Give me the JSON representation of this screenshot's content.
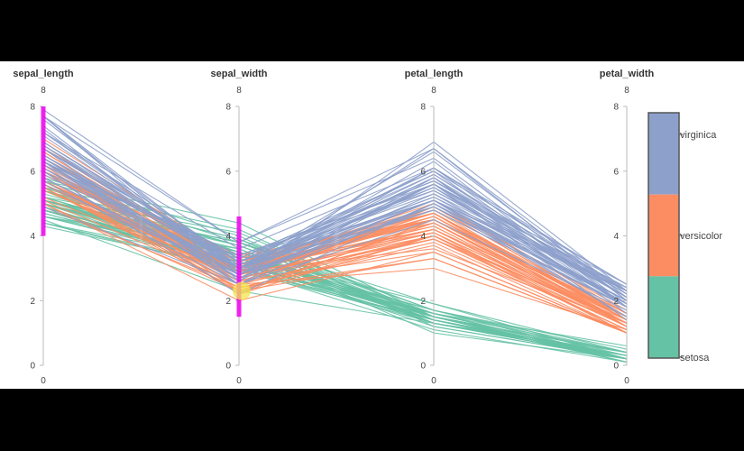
{
  "chart_data": {
    "type": "parallel_coordinates",
    "dimensions": [
      {
        "name": "sepal_length",
        "range": [
          0,
          8
        ],
        "ticks": [
          0,
          2,
          4,
          6,
          8
        ]
      },
      {
        "name": "sepal_width",
        "range": [
          0,
          8
        ],
        "ticks": [
          0,
          2,
          4,
          6,
          8
        ]
      },
      {
        "name": "petal_length",
        "range": [
          0,
          8
        ],
        "ticks": [
          0,
          2,
          4,
          6,
          8
        ]
      },
      {
        "name": "petal_width",
        "range": [
          0,
          8
        ],
        "ticks": [
          0,
          2,
          4,
          6,
          8
        ]
      }
    ],
    "legend": {
      "position": "right",
      "categories": [
        {
          "name": "virginica",
          "color": "#8da0cb"
        },
        {
          "name": "versicolor",
          "color": "#fc8d62"
        },
        {
          "name": "setosa",
          "color": "#66c2a5"
        }
      ]
    },
    "series": [
      {
        "name": "setosa",
        "color": "#66c2a5",
        "rows": [
          [
            5.1,
            3.5,
            1.4,
            0.2
          ],
          [
            4.9,
            3.0,
            1.4,
            0.2
          ],
          [
            4.7,
            3.2,
            1.3,
            0.2
          ],
          [
            4.6,
            3.1,
            1.5,
            0.2
          ],
          [
            5.0,
            3.6,
            1.4,
            0.2
          ],
          [
            5.4,
            3.9,
            1.7,
            0.4
          ],
          [
            4.6,
            3.4,
            1.4,
            0.3
          ],
          [
            5.0,
            3.4,
            1.5,
            0.2
          ],
          [
            4.4,
            2.9,
            1.4,
            0.2
          ],
          [
            4.9,
            3.1,
            1.5,
            0.1
          ],
          [
            5.4,
            3.7,
            1.5,
            0.2
          ],
          [
            4.8,
            3.4,
            1.6,
            0.2
          ],
          [
            4.8,
            3.0,
            1.4,
            0.1
          ],
          [
            4.3,
            3.0,
            1.1,
            0.1
          ],
          [
            5.8,
            4.0,
            1.2,
            0.2
          ],
          [
            5.7,
            4.4,
            1.5,
            0.4
          ],
          [
            5.4,
            3.9,
            1.3,
            0.4
          ],
          [
            5.1,
            3.5,
            1.4,
            0.3
          ],
          [
            5.7,
            3.8,
            1.7,
            0.3
          ],
          [
            5.1,
            3.8,
            1.5,
            0.3
          ],
          [
            5.4,
            3.4,
            1.7,
            0.2
          ],
          [
            5.1,
            3.7,
            1.5,
            0.4
          ],
          [
            4.6,
            3.6,
            1.0,
            0.2
          ],
          [
            5.1,
            3.3,
            1.7,
            0.5
          ],
          [
            4.8,
            3.4,
            1.9,
            0.2
          ],
          [
            5.0,
            3.0,
            1.6,
            0.2
          ],
          [
            5.0,
            3.4,
            1.6,
            0.4
          ],
          [
            5.2,
            3.5,
            1.5,
            0.2
          ],
          [
            5.2,
            3.4,
            1.4,
            0.2
          ],
          [
            4.7,
            3.2,
            1.6,
            0.2
          ],
          [
            4.8,
            3.1,
            1.6,
            0.2
          ],
          [
            5.4,
            3.4,
            1.5,
            0.4
          ],
          [
            5.2,
            4.1,
            1.5,
            0.1
          ],
          [
            5.5,
            4.2,
            1.4,
            0.2
          ],
          [
            4.9,
            3.1,
            1.5,
            0.2
          ],
          [
            5.0,
            3.2,
            1.2,
            0.2
          ],
          [
            5.5,
            3.5,
            1.3,
            0.2
          ],
          [
            4.4,
            3.0,
            1.3,
            0.2
          ],
          [
            5.1,
            3.4,
            1.5,
            0.2
          ],
          [
            5.0,
            3.5,
            1.3,
            0.3
          ],
          [
            4.5,
            2.3,
            1.3,
            0.3
          ],
          [
            4.4,
            3.2,
            1.3,
            0.2
          ],
          [
            5.0,
            3.5,
            1.6,
            0.6
          ],
          [
            5.1,
            3.8,
            1.9,
            0.4
          ],
          [
            4.8,
            3.0,
            1.4,
            0.3
          ],
          [
            5.1,
            3.8,
            1.6,
            0.2
          ],
          [
            4.6,
            3.2,
            1.4,
            0.2
          ],
          [
            5.3,
            3.7,
            1.5,
            0.2
          ],
          [
            5.0,
            3.3,
            1.4,
            0.2
          ]
        ]
      },
      {
        "name": "versicolor",
        "color": "#fc8d62",
        "rows": [
          [
            7.0,
            3.2,
            4.7,
            1.4
          ],
          [
            6.4,
            3.2,
            4.5,
            1.5
          ],
          [
            6.9,
            3.1,
            4.9,
            1.5
          ],
          [
            5.5,
            2.3,
            4.0,
            1.3
          ],
          [
            6.5,
            2.8,
            4.6,
            1.5
          ],
          [
            5.7,
            2.8,
            4.5,
            1.3
          ],
          [
            6.3,
            3.3,
            4.7,
            1.6
          ],
          [
            4.9,
            2.4,
            3.3,
            1.0
          ],
          [
            6.6,
            2.9,
            4.6,
            1.3
          ],
          [
            5.2,
            2.7,
            3.9,
            1.4
          ],
          [
            5.0,
            2.0,
            3.5,
            1.0
          ],
          [
            5.9,
            3.0,
            4.2,
            1.5
          ],
          [
            6.0,
            2.2,
            4.0,
            1.0
          ],
          [
            6.1,
            2.9,
            4.7,
            1.4
          ],
          [
            5.6,
            2.9,
            3.6,
            1.3
          ],
          [
            6.7,
            3.1,
            4.4,
            1.4
          ],
          [
            5.6,
            3.0,
            4.5,
            1.5
          ],
          [
            5.8,
            2.7,
            4.1,
            1.0
          ],
          [
            6.2,
            2.2,
            4.5,
            1.5
          ],
          [
            5.6,
            2.5,
            3.9,
            1.1
          ],
          [
            5.9,
            3.2,
            4.8,
            1.8
          ],
          [
            6.1,
            2.8,
            4.0,
            1.3
          ],
          [
            6.3,
            2.5,
            4.9,
            1.5
          ],
          [
            6.1,
            2.8,
            4.7,
            1.2
          ],
          [
            6.4,
            2.9,
            4.3,
            1.3
          ],
          [
            6.6,
            3.0,
            4.4,
            1.4
          ],
          [
            6.8,
            2.8,
            4.8,
            1.4
          ],
          [
            6.7,
            3.0,
            5.0,
            1.7
          ],
          [
            6.0,
            2.9,
            4.5,
            1.5
          ],
          [
            5.7,
            2.6,
            3.5,
            1.0
          ],
          [
            5.5,
            2.4,
            3.8,
            1.1
          ],
          [
            5.5,
            2.4,
            3.7,
            1.0
          ],
          [
            5.8,
            2.7,
            3.9,
            1.2
          ],
          [
            6.0,
            2.7,
            5.1,
            1.6
          ],
          [
            5.4,
            3.0,
            4.5,
            1.5
          ],
          [
            6.0,
            3.4,
            4.5,
            1.6
          ],
          [
            6.7,
            3.1,
            4.7,
            1.5
          ],
          [
            6.3,
            2.3,
            4.4,
            1.3
          ],
          [
            5.6,
            3.0,
            4.1,
            1.3
          ],
          [
            5.5,
            2.5,
            4.0,
            1.3
          ],
          [
            5.5,
            2.6,
            4.4,
            1.2
          ],
          [
            6.1,
            3.0,
            4.6,
            1.4
          ],
          [
            5.8,
            2.6,
            4.0,
            1.2
          ],
          [
            5.0,
            2.3,
            3.3,
            1.0
          ],
          [
            5.6,
            2.7,
            4.2,
            1.3
          ],
          [
            5.7,
            3.0,
            4.2,
            1.2
          ],
          [
            5.7,
            2.9,
            4.2,
            1.3
          ],
          [
            6.2,
            2.9,
            4.3,
            1.3
          ],
          [
            5.1,
            2.5,
            3.0,
            1.1
          ],
          [
            5.7,
            2.8,
            4.1,
            1.3
          ]
        ]
      },
      {
        "name": "virginica",
        "color": "#8da0cb",
        "rows": [
          [
            6.3,
            3.3,
            6.0,
            2.5
          ],
          [
            5.8,
            2.7,
            5.1,
            1.9
          ],
          [
            7.1,
            3.0,
            5.9,
            2.1
          ],
          [
            6.3,
            2.9,
            5.6,
            1.8
          ],
          [
            6.5,
            3.0,
            5.8,
            2.2
          ],
          [
            7.6,
            3.0,
            6.6,
            2.1
          ],
          [
            4.9,
            2.5,
            4.5,
            1.7
          ],
          [
            7.3,
            2.9,
            6.3,
            1.8
          ],
          [
            6.7,
            2.5,
            5.8,
            1.8
          ],
          [
            7.2,
            3.6,
            6.1,
            2.5
          ],
          [
            6.5,
            3.2,
            5.1,
            2.0
          ],
          [
            6.4,
            2.7,
            5.3,
            1.9
          ],
          [
            6.8,
            3.0,
            5.5,
            2.1
          ],
          [
            5.7,
            2.5,
            5.0,
            2.0
          ],
          [
            5.8,
            2.8,
            5.1,
            2.4
          ],
          [
            6.4,
            3.2,
            5.3,
            2.3
          ],
          [
            6.5,
            3.0,
            5.5,
            1.8
          ],
          [
            7.7,
            3.8,
            6.7,
            2.2
          ],
          [
            7.7,
            2.6,
            6.9,
            2.3
          ],
          [
            6.0,
            2.2,
            5.0,
            1.5
          ],
          [
            6.9,
            3.2,
            5.7,
            2.3
          ],
          [
            5.6,
            2.8,
            4.9,
            2.0
          ],
          [
            7.7,
            2.8,
            6.7,
            2.0
          ],
          [
            6.3,
            2.7,
            4.9,
            1.8
          ],
          [
            6.7,
            3.3,
            5.7,
            2.1
          ],
          [
            7.2,
            3.2,
            6.0,
            1.8
          ],
          [
            6.2,
            2.8,
            4.8,
            1.8
          ],
          [
            6.1,
            3.0,
            4.9,
            1.8
          ],
          [
            6.4,
            2.8,
            5.6,
            2.1
          ],
          [
            7.2,
            3.0,
            5.8,
            1.6
          ],
          [
            7.4,
            2.8,
            6.1,
            1.9
          ],
          [
            7.9,
            3.8,
            6.4,
            2.0
          ],
          [
            6.4,
            2.8,
            5.6,
            2.2
          ],
          [
            6.3,
            2.8,
            5.1,
            1.5
          ],
          [
            6.1,
            2.6,
            5.6,
            1.4
          ],
          [
            7.7,
            3.0,
            6.1,
            2.3
          ],
          [
            6.3,
            3.4,
            5.6,
            2.4
          ],
          [
            6.4,
            3.1,
            5.5,
            1.8
          ],
          [
            6.0,
            3.0,
            4.8,
            1.8
          ],
          [
            6.9,
            3.1,
            5.4,
            2.1
          ],
          [
            6.7,
            3.1,
            5.6,
            2.4
          ],
          [
            6.9,
            3.1,
            5.1,
            2.3
          ],
          [
            5.8,
            2.7,
            5.1,
            1.9
          ],
          [
            6.8,
            3.2,
            5.9,
            2.3
          ],
          [
            6.7,
            3.3,
            5.7,
            2.5
          ],
          [
            6.7,
            3.0,
            5.2,
            2.3
          ],
          [
            6.3,
            2.5,
            5.0,
            1.9
          ],
          [
            6.5,
            3.0,
            5.2,
            2.0
          ],
          [
            6.2,
            3.4,
            5.4,
            2.3
          ],
          [
            5.9,
            3.0,
            5.1,
            1.8
          ]
        ]
      }
    ],
    "brushes": [
      {
        "dimension": "sepal_length",
        "range": [
          4.0,
          8.0
        ],
        "color": "#ee00ee"
      },
      {
        "dimension": "sepal_width",
        "range": [
          1.5,
          4.6
        ],
        "color": "#ee00ee"
      }
    ],
    "highlight": {
      "dimension": "sepal_width",
      "value": 2.3,
      "color": "#f2e44c"
    }
  }
}
